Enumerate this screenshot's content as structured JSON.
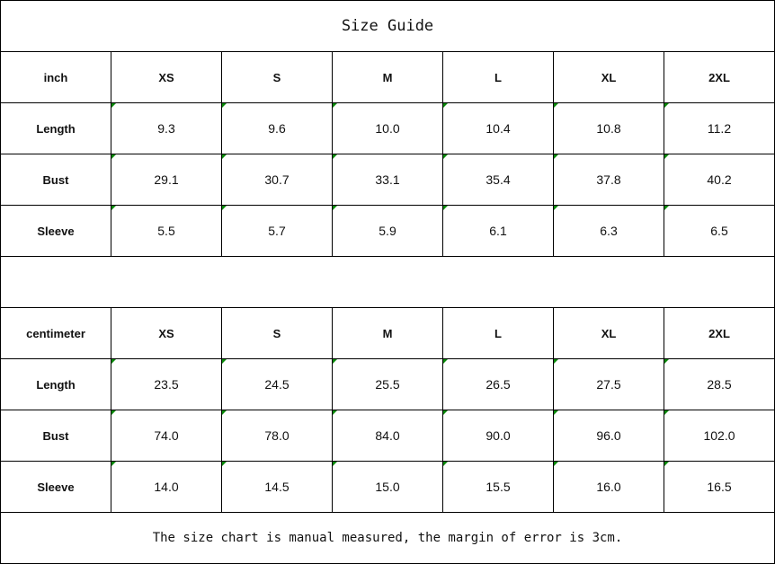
{
  "title": "Size Guide",
  "tables": [
    {
      "unit": "inch",
      "sizes": [
        "XS",
        "S",
        "M",
        "L",
        "XL",
        "2XL"
      ],
      "rows": [
        {
          "label": "Length",
          "values": [
            "9.3",
            "9.6",
            "10.0",
            "10.4",
            "10.8",
            "11.2"
          ]
        },
        {
          "label": "Bust",
          "values": [
            "29.1",
            "30.7",
            "33.1",
            "35.4",
            "37.8",
            "40.2"
          ]
        },
        {
          "label": "Sleeve",
          "values": [
            "5.5",
            "5.7",
            "5.9",
            "6.1",
            "6.3",
            "6.5"
          ]
        }
      ]
    },
    {
      "unit": "centimeter",
      "sizes": [
        "XS",
        "S",
        "M",
        "L",
        "XL",
        "2XL"
      ],
      "rows": [
        {
          "label": "Length",
          "values": [
            "23.5",
            "24.5",
            "25.5",
            "26.5",
            "27.5",
            "28.5"
          ]
        },
        {
          "label": "Bust",
          "values": [
            "74.0",
            "78.0",
            "84.0",
            "90.0",
            "96.0",
            "102.0"
          ]
        },
        {
          "label": "Sleeve",
          "values": [
            "14.0",
            "14.5",
            "15.0",
            "15.5",
            "16.0",
            "16.5"
          ]
        }
      ]
    }
  ],
  "note": "The size chart is manual measured, the margin of error is 3cm.",
  "colors": {
    "comment_marker": "#0a8a0a",
    "grid": "#000000"
  }
}
